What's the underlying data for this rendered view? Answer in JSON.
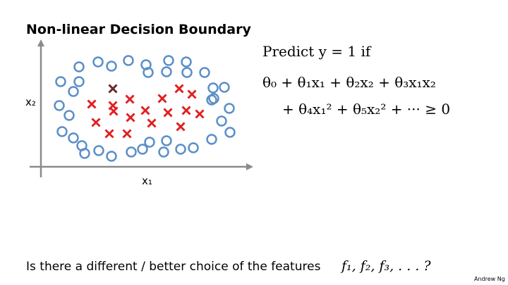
{
  "slide": {
    "title": "Non-linear Decision Boundary",
    "axis_labels": {
      "y": "x₂",
      "x": "x₁"
    },
    "formula": {
      "line1": "Predict y = 1 if",
      "line2": "θ₀ + θ₁x₁ + θ₂x₂ + θ₃x₁x₂",
      "line3": "+ θ₄x₁² + θ₅x₂² + ··· ≥ 0"
    },
    "question": {
      "text": "Is there a different / better choice of the features",
      "math": "f₁, f₂, f₃, . . . ?"
    },
    "footer": "Andrew Ng"
  }
}
